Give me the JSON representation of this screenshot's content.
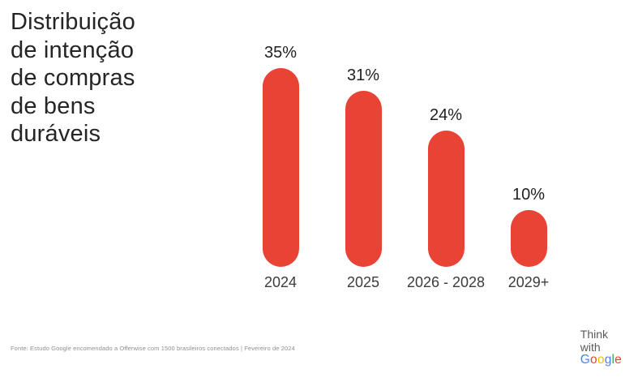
{
  "title": {
    "lines": [
      "Distribuição",
      "de intenção",
      "de compras",
      "de bens",
      "duráveis"
    ]
  },
  "chart_data": {
    "type": "bar",
    "title": "Distribuição de intenção de compras de bens duráveis",
    "categories": [
      "2024",
      "2025",
      "2026 - 2028",
      "2029+"
    ],
    "values": [
      35,
      31,
      24,
      10
    ],
    "value_labels": [
      "35%",
      "31%",
      "24%",
      "10%"
    ],
    "unit": "%",
    "ylim": [
      0,
      35
    ],
    "bar_color": "#E84335",
    "grid": false,
    "legend": false,
    "xlabel": "",
    "ylabel": ""
  },
  "footer": {
    "source": "Fonte: Estudo Google encomendado a Offerwise com 1500 brasileiros conectados | Fevereiro de 2024"
  },
  "logo": {
    "line1": "Think",
    "line2": "with",
    "letters": [
      {
        "ch": "G",
        "color": "#4285F4"
      },
      {
        "ch": "o",
        "color": "#EA4335"
      },
      {
        "ch": "o",
        "color": "#FBBC05"
      },
      {
        "ch": "g",
        "color": "#4285F4"
      },
      {
        "ch": "l",
        "color": "#34A853"
      },
      {
        "ch": "e",
        "color": "#EA4335"
      }
    ]
  }
}
